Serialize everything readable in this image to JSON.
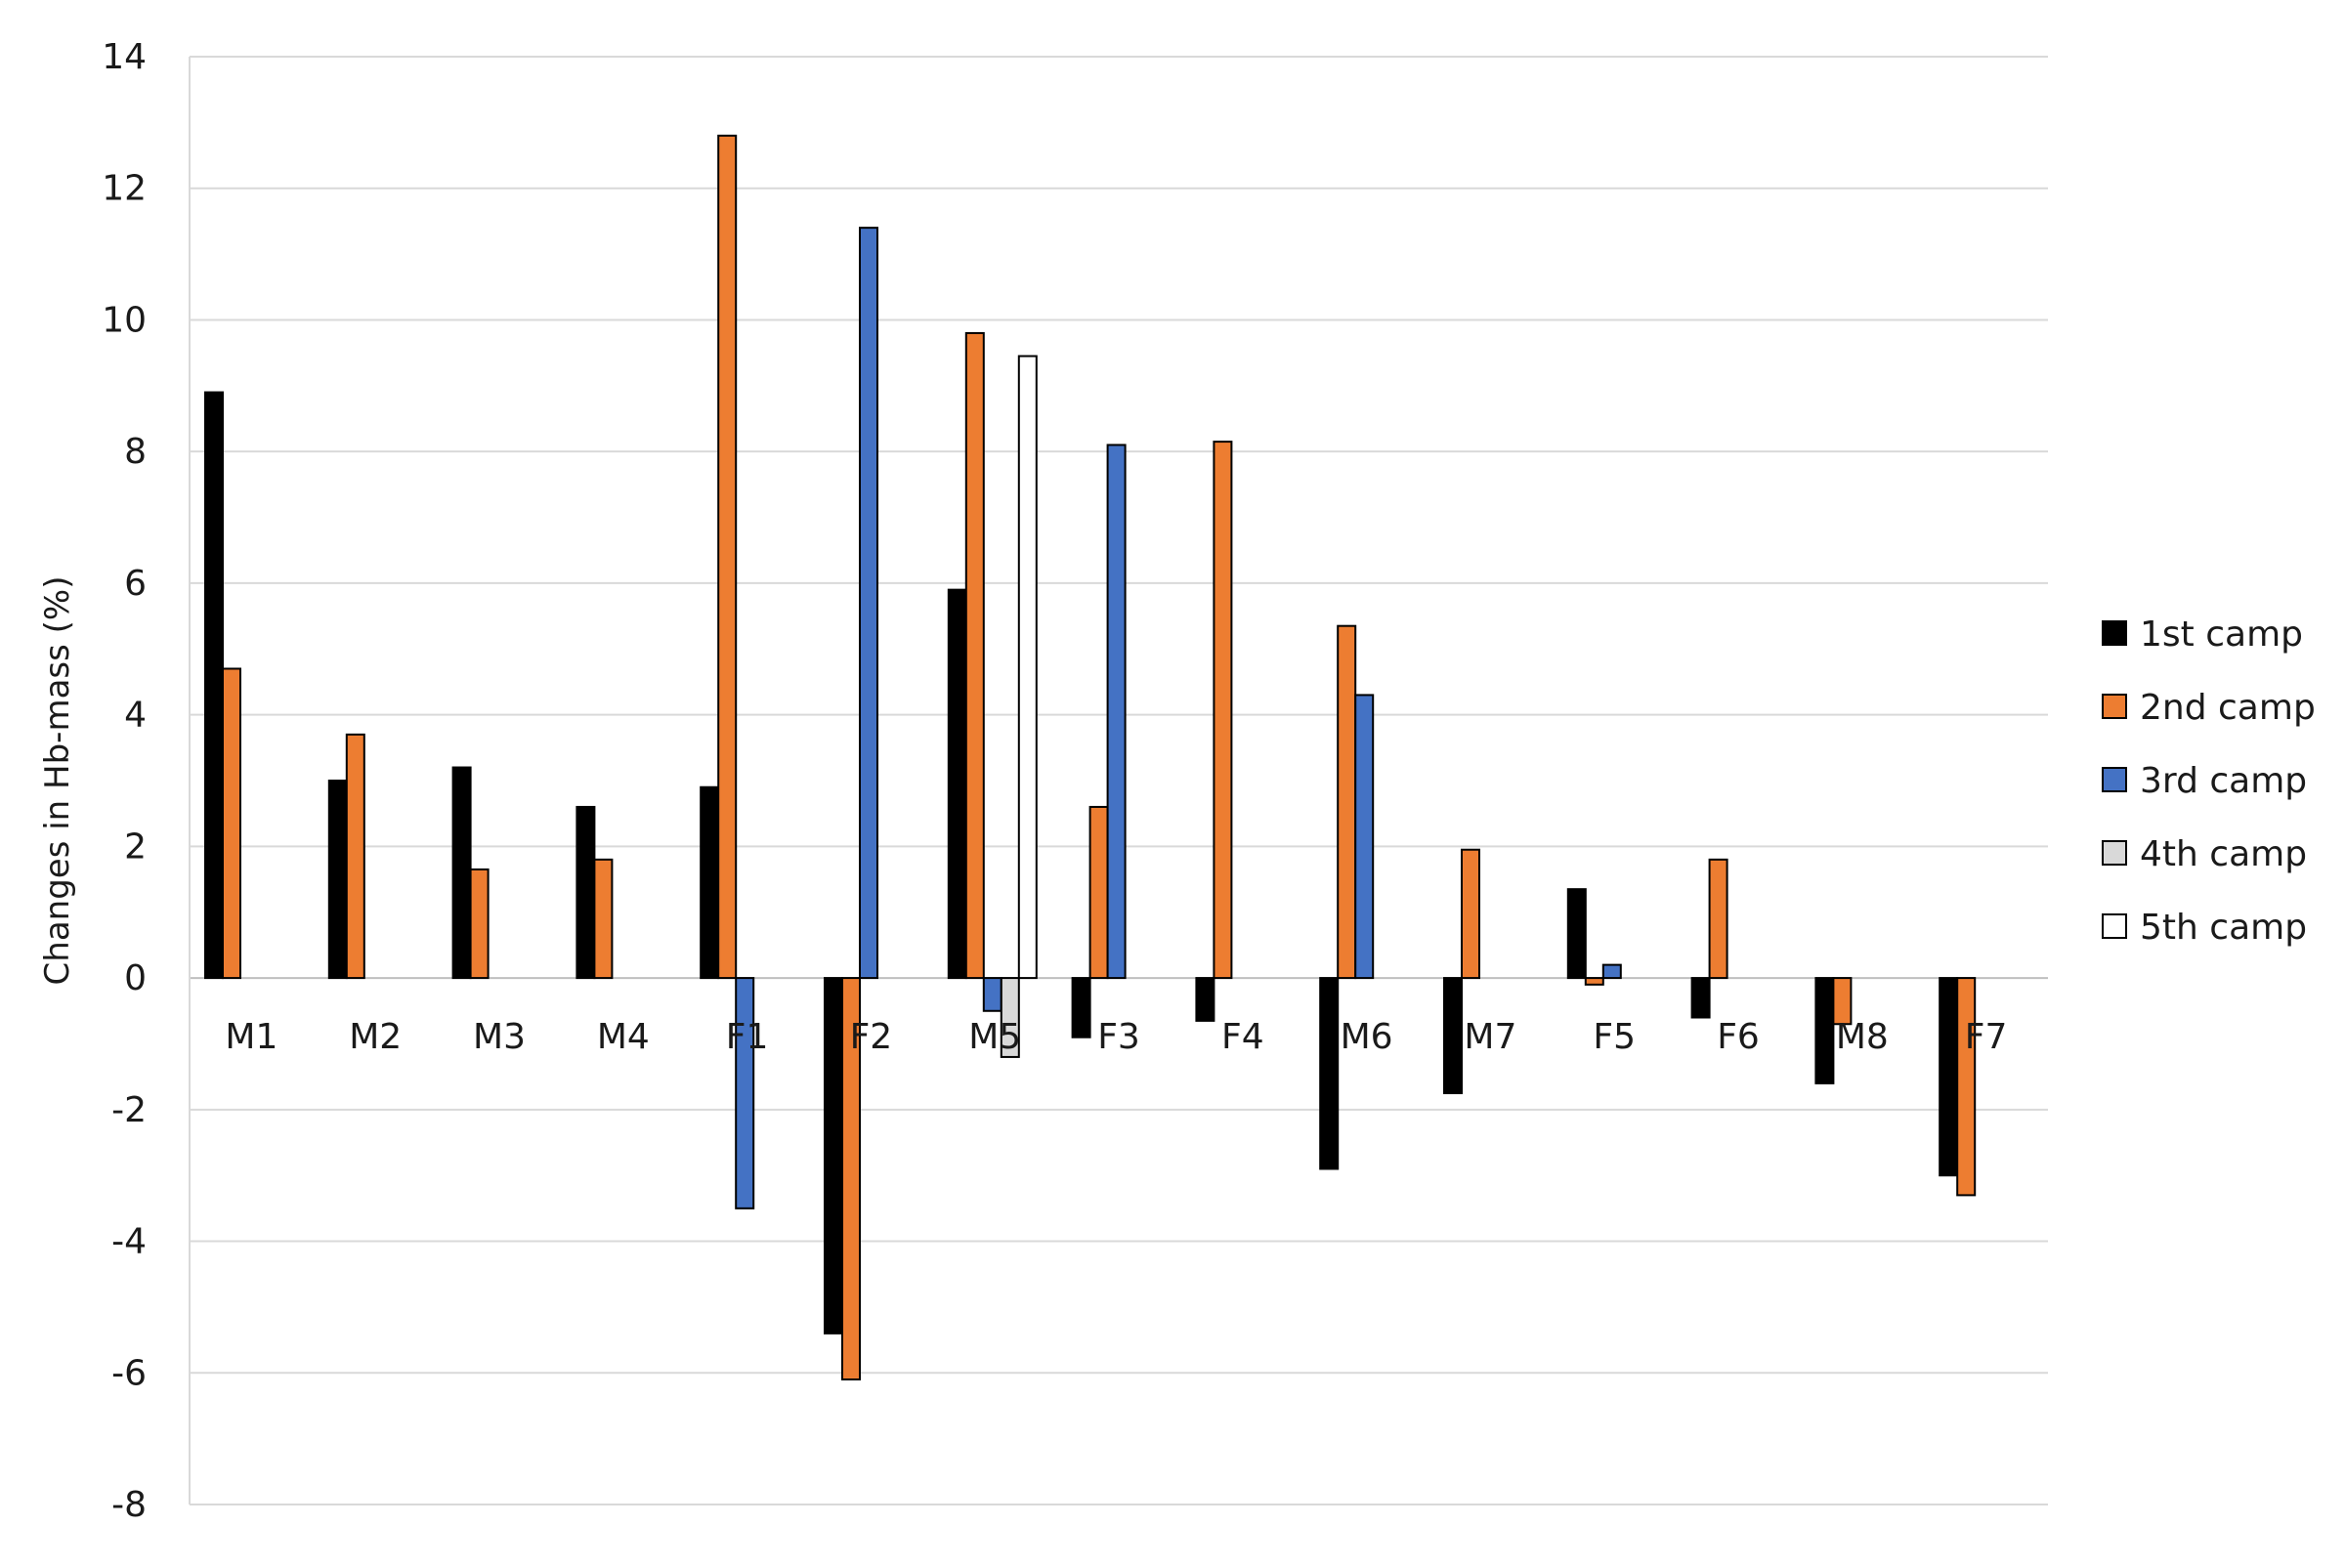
{
  "chart_data": {
    "type": "bar",
    "title": "",
    "xlabel": "",
    "ylabel": "Changes in Hb-mass (%)",
    "ylim": [
      -8,
      14
    ],
    "yticks": [
      14,
      12,
      10,
      8,
      6,
      4,
      2,
      0,
      -2,
      -4,
      -6,
      -8
    ],
    "grid": true,
    "legend_position": "right",
    "categories": [
      "M1",
      "M2",
      "M3",
      "M4",
      "F1",
      "F2",
      "M5",
      "F3",
      "F4",
      "M6",
      "M7",
      "F5",
      "F6",
      "M8",
      "F7"
    ],
    "series": [
      {
        "name": "1st camp",
        "color": "#000000",
        "values": [
          8.9,
          3.0,
          3.2,
          2.6,
          2.9,
          -5.4,
          5.9,
          -0.9,
          -0.65,
          -2.9,
          -1.75,
          1.35,
          -0.6,
          -1.6,
          -3.0
        ]
      },
      {
        "name": "2nd camp",
        "color": "#ED7D31",
        "values": [
          4.7,
          3.7,
          1.65,
          1.8,
          12.8,
          -6.1,
          9.8,
          2.6,
          8.15,
          5.35,
          1.95,
          -0.1,
          1.8,
          -0.7,
          -3.3
        ]
      },
      {
        "name": "3rd camp",
        "color": "#4472C4",
        "values": [
          null,
          null,
          null,
          null,
          -3.5,
          11.4,
          -0.5,
          8.1,
          null,
          4.3,
          null,
          0.2,
          null,
          null,
          null
        ]
      },
      {
        "name": "4th camp",
        "color": "#D9D9D9",
        "values": [
          null,
          null,
          null,
          null,
          null,
          null,
          -1.2,
          null,
          null,
          null,
          null,
          null,
          null,
          null,
          null
        ]
      },
      {
        "name": "5th camp",
        "color": "#FFFFFF",
        "values": [
          null,
          null,
          null,
          null,
          null,
          null,
          9.45,
          null,
          null,
          null,
          null,
          null,
          null,
          null,
          null
        ]
      }
    ]
  }
}
